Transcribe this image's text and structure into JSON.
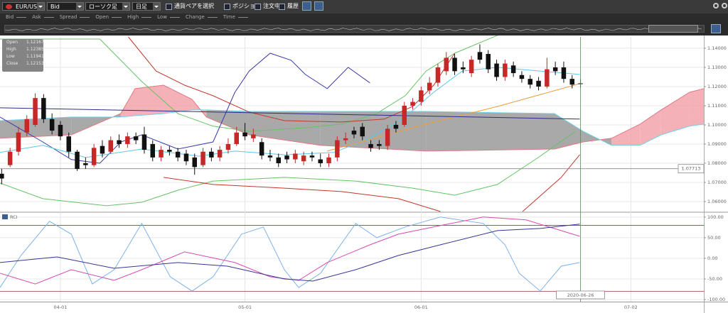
{
  "toolbar": {
    "pair": "EUR/USD",
    "price": "Bid",
    "chart_type": "ローソク足",
    "period": "日足",
    "select_pair": "通貨ペアを選択",
    "checks": [
      "ポジション",
      "注文中",
      "履歴"
    ]
  },
  "legend_row": [
    "Bid",
    "Ask",
    "Spread",
    "Open",
    "High",
    "Low",
    "Change",
    "Time"
  ],
  "ohlc_box": {
    "labels": [
      "Open",
      "High",
      "Low",
      "Close"
    ],
    "values": [
      "1.12167",
      "1.12385",
      "1.11941",
      "1.12153"
    ]
  },
  "chart_data": [
    {
      "type": "candlestick",
      "xlim": [
        -7.2,
        76.7
      ],
      "ylim": [
        1.0548,
        1.1459
      ],
      "yticks": [
        {
          "value": 1.14,
          "label": "1.14000"
        },
        {
          "value": 1.13,
          "label": "1.13000"
        },
        {
          "value": 1.12,
          "label": "1.12000"
        },
        {
          "value": 1.11,
          "label": "1.11000"
        },
        {
          "value": 1.1,
          "label": "1.10000"
        },
        {
          "value": 1.09,
          "label": "1.09000"
        },
        {
          "value": 1.08,
          "label": "1.08000"
        },
        {
          "value": 1.07,
          "label": "1.07000"
        },
        {
          "value": 1.06,
          "label": "1.06000"
        }
      ],
      "grid": true,
      "up_color": "#c62828",
      "down_color": "#111111",
      "x": [
        -7,
        -6,
        -5,
        -4,
        -3,
        -2,
        -1,
        0,
        1,
        2,
        3,
        4,
        5,
        6,
        7,
        8,
        9,
        10,
        11,
        12,
        13,
        14,
        15,
        16,
        17,
        18,
        19,
        20,
        21,
        22,
        23,
        24,
        25,
        26,
        27,
        28,
        29,
        30,
        31,
        32,
        33,
        34,
        35,
        36,
        37,
        38,
        39,
        40,
        41,
        42,
        43,
        44,
        45,
        46,
        47,
        48,
        49,
        50,
        51,
        52,
        53,
        54,
        55,
        56,
        57,
        58,
        59,
        60,
        61,
        62
      ],
      "open": [
        1.0745,
        1.079,
        1.086,
        1.096,
        1.1,
        1.114,
        1.103,
        1.1,
        1.094,
        1.086,
        1.08,
        1.079,
        1.089,
        1.086,
        1.092,
        1.09,
        1.094,
        1.095,
        1.09,
        1.083,
        1.087,
        1.086,
        1.085,
        1.083,
        1.079,
        1.086,
        1.083,
        1.087,
        1.09,
        1.096,
        1.093,
        1.091,
        1.084,
        1.083,
        1.084,
        1.082,
        1.081,
        1.084,
        1.082,
        1.08,
        1.083,
        1.092,
        1.097,
        1.099,
        1.09,
        1.09,
        1.089,
        1.1,
        1.1,
        1.11,
        1.112,
        1.118,
        1.122,
        1.128,
        1.135,
        1.13,
        1.127,
        1.138,
        1.137,
        1.132,
        1.125,
        1.131,
        1.126,
        1.124,
        1.123,
        1.12,
        1.13,
        1.13,
        1.124,
        1.12167
      ],
      "high": [
        1.077,
        1.088,
        1.099,
        1.105,
        1.1165,
        1.116,
        1.106,
        1.102,
        1.096,
        1.087,
        1.083,
        1.09,
        1.092,
        1.094,
        1.095,
        1.096,
        1.096,
        1.099,
        1.092,
        1.089,
        1.089,
        1.088,
        1.087,
        1.085,
        1.088,
        1.088,
        1.089,
        1.093,
        1.099,
        1.101,
        1.098,
        1.093,
        1.087,
        1.085,
        1.086,
        1.087,
        1.086,
        1.086,
        1.085,
        1.085,
        1.094,
        1.096,
        1.099,
        1.101,
        1.092,
        1.092,
        1.1,
        1.102,
        1.112,
        1.114,
        1.12,
        1.125,
        1.132,
        1.138,
        1.137,
        1.133,
        1.136,
        1.142,
        1.139,
        1.134,
        1.134,
        1.133,
        1.128,
        1.126,
        1.125,
        1.135,
        1.133,
        1.133,
        1.126,
        1.12385
      ],
      "low": [
        1.069,
        1.078,
        1.084,
        1.094,
        1.099,
        1.101,
        1.095,
        1.092,
        1.083,
        1.076,
        1.077,
        1.078,
        1.083,
        1.085,
        1.088,
        1.088,
        1.09,
        1.085,
        1.081,
        1.081,
        1.084,
        1.081,
        1.079,
        1.074,
        1.078,
        1.081,
        1.081,
        1.085,
        1.089,
        1.092,
        1.091,
        1.082,
        1.081,
        1.078,
        1.08,
        1.08,
        1.079,
        1.081,
        1.078,
        1.078,
        1.081,
        1.09,
        1.093,
        1.092,
        1.086,
        1.087,
        1.087,
        1.096,
        1.099,
        1.108,
        1.11,
        1.116,
        1.12,
        1.126,
        1.126,
        1.127,
        1.125,
        1.132,
        1.127,
        1.123,
        1.123,
        1.125,
        1.122,
        1.119,
        1.118,
        1.119,
        1.126,
        1.122,
        1.119,
        1.11941
      ],
      "close": [
        1.072,
        1.086,
        1.096,
        1.103,
        1.114,
        1.103,
        1.097,
        1.094,
        1.086,
        1.077,
        1.079,
        1.088,
        1.085,
        1.092,
        1.09,
        1.094,
        1.092,
        1.087,
        1.083,
        1.087,
        1.086,
        1.083,
        1.081,
        1.078,
        1.086,
        1.083,
        1.087,
        1.09,
        1.096,
        1.094,
        1.095,
        1.084,
        1.083,
        1.08,
        1.082,
        1.085,
        1.084,
        1.083,
        1.08,
        1.083,
        1.092,
        1.093,
        1.095,
        1.094,
        1.088,
        1.089,
        1.098,
        1.098,
        1.11,
        1.112,
        1.118,
        1.122,
        1.13,
        1.135,
        1.128,
        1.129,
        1.134,
        1.134,
        1.129,
        1.125,
        1.132,
        1.127,
        1.124,
        1.121,
        1.12,
        1.129,
        1.128,
        1.124,
        1.121,
        1.12153
      ],
      "cloud": {
        "x": [
          -7.2,
          1.3,
          7.2,
          8.9,
          12.3,
          15.7,
          17.4,
          22.5,
          31,
          43.6,
          58.9,
          62.3,
          65.7,
          69.1,
          71.6,
          75,
          76.7
        ],
        "span_a": [
          1.093,
          1.0948,
          1.1059,
          1.1189,
          1.1207,
          1.1133,
          1.1041,
          1.0948,
          1.0893,
          1.0863,
          1.0874,
          1.0911,
          1.093,
          1.1004,
          1.1078,
          1.117,
          1.1189
        ],
        "span_b": [
          1.1022,
          1.1041,
          1.1041,
          1.1048,
          1.1059,
          1.1078,
          1.1078,
          1.107,
          1.107,
          1.107,
          1.1059,
          1.0967,
          1.0893,
          1.0893,
          1.0948,
          1.0993,
          1.1004
        ],
        "bull_color": "#f2a4ab",
        "bear_color": "#9a9a9a",
        "edge_a": "#e07a85",
        "edge_b": "#6fd3e6"
      },
      "series": [
        {
          "color": "#66c266",
          "x": [
            -7.2,
            4.7,
            9.7,
            14,
            18.2,
            22.5,
            29.2,
            33.5,
            37.7,
            41.1,
            43.6,
            47,
            52.1
          ],
          "values": [
            1.1448,
            1.1448,
            1.1226,
            1.1059,
            1.0993,
            1.0967,
            1.0985,
            1.1004,
            1.1059,
            1.1152,
            1.1281,
            1.1374,
            1.1467
          ]
        },
        {
          "color": "#66c266",
          "x": [
            -7.2,
            -2.1,
            5.5,
            9.7,
            14,
            18.2,
            26.7,
            35.2,
            42,
            47,
            52.1,
            57.2,
            61.4
          ],
          "values": [
            1.0696,
            1.0615,
            1.0578,
            1.0596,
            1.0659,
            1.0707,
            1.0726,
            1.0707,
            1.067,
            1.0633,
            1.0689,
            1.0837,
            1.0967
          ]
        },
        {
          "color": "#c0392b",
          "x": [
            8.1,
            11.4,
            14.8,
            18.2,
            22.5,
            26.7,
            33.5,
            38.6,
            42,
            44.5,
            47
          ],
          "values": [
            1.1459,
            1.1281,
            1.1207,
            1.1152,
            1.1067,
            1.1022,
            1.1015,
            1.103,
            1.1096,
            1.1207,
            1.1374
          ]
        },
        {
          "color": "#c0392b",
          "x": [
            12.3,
            18.2,
            26.7,
            33.5,
            40.3,
            45.3,
            null,
            55.1,
            59.7,
            61.9
          ],
          "values": [
            1.0726,
            1.0689,
            1.067,
            1.0652,
            1.0615,
            1.0548,
            null,
            1.0548,
            1.0726,
            1.0844
          ]
        },
        {
          "color": "#3a3aa8",
          "x": [
            -7.2,
            -2.1,
            1.3,
            4.7,
            7.2,
            9.7,
            14,
            18.2,
            20.8,
            22.5,
            25,
            27.5,
            29.2,
            31.8,
            34.3,
            36.9
          ],
          "values": [
            1.1041,
            1.0911,
            1.0819,
            1.08,
            1.0911,
            1.0948,
            1.0874,
            1.0911,
            1.117,
            1.1281,
            1.1374,
            1.1337,
            1.1263,
            1.1189,
            1.13,
            1.1219
          ]
        },
        {
          "color": "#5bc8e8",
          "x": [
            -7.2,
            -2.1,
            3,
            9.7,
            16.5,
            20.8,
            26.7,
            32.6,
            36.9,
            41.1,
            44.5,
            47.9,
            52.1,
            57.2,
            61.9
          ],
          "values": [
            1.0856,
            1.0893,
            1.083,
            1.0874,
            1.0837,
            1.0863,
            1.0844,
            1.0856,
            1.093,
            1.1041,
            1.117,
            1.1281,
            1.13,
            1.1281,
            1.1263
          ]
        },
        {
          "color": "#e8a040",
          "x": [
            31.8,
            43.6,
            52.1,
            61.9
          ],
          "values": [
            1.0863,
            1.1004,
            1.1096,
            1.1215
          ]
        },
        {
          "color": "#2c2c8c",
          "x": [
            -7.2,
            61.9
          ],
          "values": [
            1.1089,
            1.103
          ]
        }
      ],
      "last_price": {
        "value": 1.07713,
        "label": "1.07713"
      }
    },
    {
      "type": "line",
      "title": "RCI",
      "xlim": [
        -7.2,
        76.7
      ],
      "ylim": [
        -105,
        110
      ],
      "xticks": [
        {
          "value": 0,
          "label": "04-01"
        },
        {
          "value": 22,
          "label": "05-01"
        },
        {
          "value": 43,
          "label": "06-01"
        },
        {
          "value": 68,
          "label": "07-02"
        }
      ],
      "yticks": [
        {
          "value": 100,
          "label": "100.00"
        },
        {
          "value": 50,
          "label": "50.00"
        },
        {
          "value": 0,
          "label": "0.00"
        },
        {
          "value": -50,
          "label": "-50.00"
        },
        {
          "value": -100,
          "label": "-100.00"
        }
      ],
      "reference_lines": [
        80,
        -80
      ],
      "reference_color": "#9b3a3a",
      "series": [
        {
          "color": "#7fb2e8",
          "x": [
            -7.2,
            -4.7,
            -1.3,
            1.3,
            3.8,
            6.4,
            9.7,
            13.1,
            15.7,
            18.2,
            21.6,
            24.2,
            26.7,
            28.4,
            31,
            35.2,
            37.7,
            41.1,
            45.3,
            50.4,
            53,
            54.7,
            57.2,
            59.7,
            61.9
          ],
          "values": [
            -70.7,
            6.9,
            89.7,
            58.6,
            -62.1,
            -27.6,
            84.5,
            -44.8,
            -79.3,
            -44.8,
            58.6,
            75.9,
            -27.6,
            -70.7,
            -36.2,
            84.5,
            50,
            75.9,
            100,
            84.5,
            32.8,
            -36.2,
            -79.3,
            -19,
            -10.3
          ]
        },
        {
          "color": "#d64ab0",
          "x": [
            -7.2,
            -3,
            1.3,
            6.4,
            9.7,
            14.8,
            20.8,
            25,
            28.4,
            31.8,
            36.9,
            40.3,
            45.3,
            50.4,
            55.5,
            61.9
          ],
          "values": [
            -36.2,
            -62.1,
            -27.6,
            -53.4,
            -27.6,
            15.5,
            -10.3,
            -44.8,
            -53.4,
            -10.3,
            32.8,
            58.6,
            79.3,
            100,
            93.1,
            53.4
          ]
        },
        {
          "color": "#35359a",
          "x": [
            -7.2,
            -0.4,
            6.4,
            14,
            19.9,
            26.7,
            30.1,
            35.2,
            40.3,
            45.3,
            52.1,
            57.2,
            61.9
          ],
          "values": [
            -10.3,
            3.4,
            -24.1,
            -10.3,
            -19,
            -50,
            -55.2,
            -27.6,
            6.9,
            32.8,
            67.2,
            72.4,
            82.8
          ]
        }
      ],
      "cursor": {
        "value": 62,
        "label": "2020-06-26"
      }
    }
  ]
}
